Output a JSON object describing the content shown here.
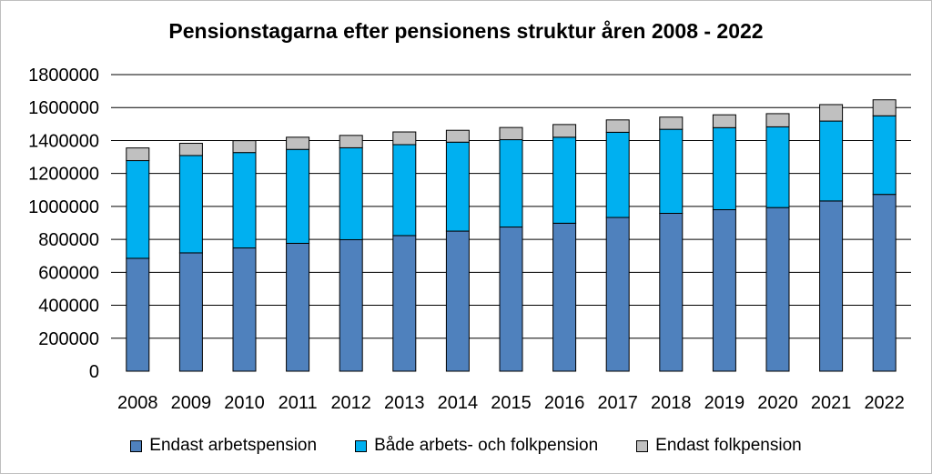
{
  "chart_data": {
    "type": "bar",
    "stacked": true,
    "title": "Pensionstagarna efter pensionens struktur åren 2008 - 2022",
    "xlabel": "",
    "ylabel": "",
    "ylim": [
      0,
      1800000
    ],
    "yticks": [
      "0",
      "200000",
      "400000",
      "600000",
      "800000",
      "1000000",
      "1200000",
      "1400000",
      "1600000",
      "1800000"
    ],
    "grid": true,
    "legend_position": "bottom",
    "categories": [
      "2008",
      "2009",
      "2010",
      "2011",
      "2012",
      "2013",
      "2014",
      "2015",
      "2016",
      "2017",
      "2018",
      "2019",
      "2020",
      "2021",
      "2022"
    ],
    "series": [
      {
        "name": "Endast arbetspension",
        "color": "#4f81bd",
        "values": [
          685000,
          718000,
          748000,
          776000,
          798000,
          823000,
          850000,
          875000,
          898000,
          933000,
          958000,
          980000,
          993000,
          1033000,
          1073000
        ]
      },
      {
        "name": "Både arbets- och folkpension",
        "color": "#00b0f0",
        "values": [
          593000,
          591000,
          579000,
          570000,
          558000,
          552000,
          540000,
          530000,
          522000,
          517000,
          510000,
          498000,
          490000,
          485000,
          477000
        ]
      },
      {
        "name": "Endast folkpension",
        "color": "#c0c0c0",
        "values": [
          77000,
          74000,
          72000,
          74000,
          75000,
          77000,
          72000,
          74000,
          77000,
          75000,
          74000,
          78000,
          80000,
          100000,
          97000
        ]
      }
    ]
  }
}
